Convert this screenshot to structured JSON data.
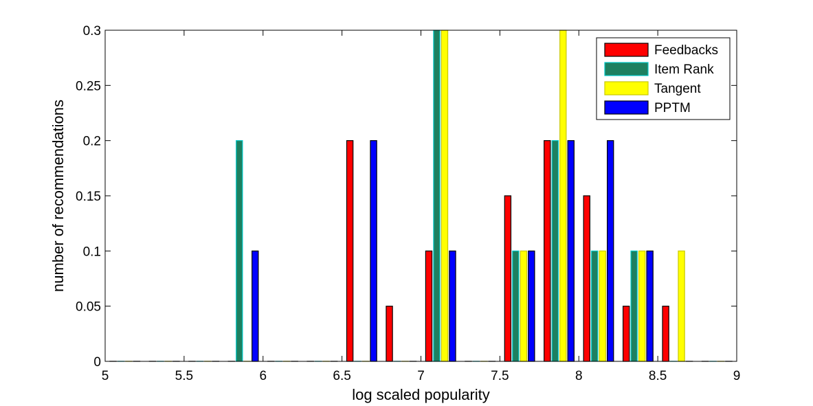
{
  "chart_data": {
    "type": "bar",
    "title": "",
    "xlabel": "log scaled popularity",
    "ylabel": "number of recommendations",
    "xlim": [
      5,
      9
    ],
    "ylim": [
      0,
      0.3
    ],
    "x_ticks": [
      5,
      5.5,
      6,
      6.5,
      7,
      7.5,
      8,
      8.5,
      9
    ],
    "x_tick_labels": [
      "5",
      "5.5",
      "6",
      "6.5",
      "7",
      "7.5",
      "8",
      "8.5",
      "9"
    ],
    "y_ticks": [
      0,
      0.05,
      0.1,
      0.15,
      0.2,
      0.25,
      0.3
    ],
    "y_tick_labels": [
      "0",
      "0.05",
      "0.1",
      "0.15",
      "0.2",
      "0.25",
      "0.3"
    ],
    "grid": false,
    "legend_position": "top-right",
    "bin_centers": [
      5.125,
      5.375,
      5.625,
      5.875,
      6.125,
      6.375,
      6.625,
      6.875,
      7.125,
      7.375,
      7.625,
      7.875,
      8.125,
      8.375,
      8.625,
      8.875
    ],
    "series": [
      {
        "name": "Feedbacks",
        "color": "#ff0000",
        "edge": "#000000",
        "values": [
          0,
          0,
          0,
          0,
          0,
          0,
          0.2,
          0.05,
          0.1,
          0,
          0.15,
          0.2,
          0.15,
          0.05,
          0.05,
          0
        ]
      },
      {
        "name": "Item Rank",
        "color": "#1e8060",
        "edge": "#00c8c8",
        "values": [
          0,
          0,
          0,
          0.2,
          0,
          0,
          0,
          0,
          0.3,
          0,
          0.1,
          0.2,
          0.1,
          0.1,
          0,
          0
        ]
      },
      {
        "name": "Tangent",
        "color": "#ffff00",
        "edge": "#c8c800",
        "values": [
          0,
          0,
          0,
          0,
          0,
          0,
          0,
          0,
          0.3,
          0,
          0.1,
          0.3,
          0.1,
          0.1,
          0.1,
          0
        ]
      },
      {
        "name": "PPTM",
        "color": "#0000ff",
        "edge": "#000000",
        "values": [
          0,
          0,
          0,
          0.1,
          0,
          0,
          0.2,
          0,
          0.1,
          0,
          0.1,
          0.2,
          0.2,
          0.1,
          0,
          0
        ]
      }
    ]
  }
}
